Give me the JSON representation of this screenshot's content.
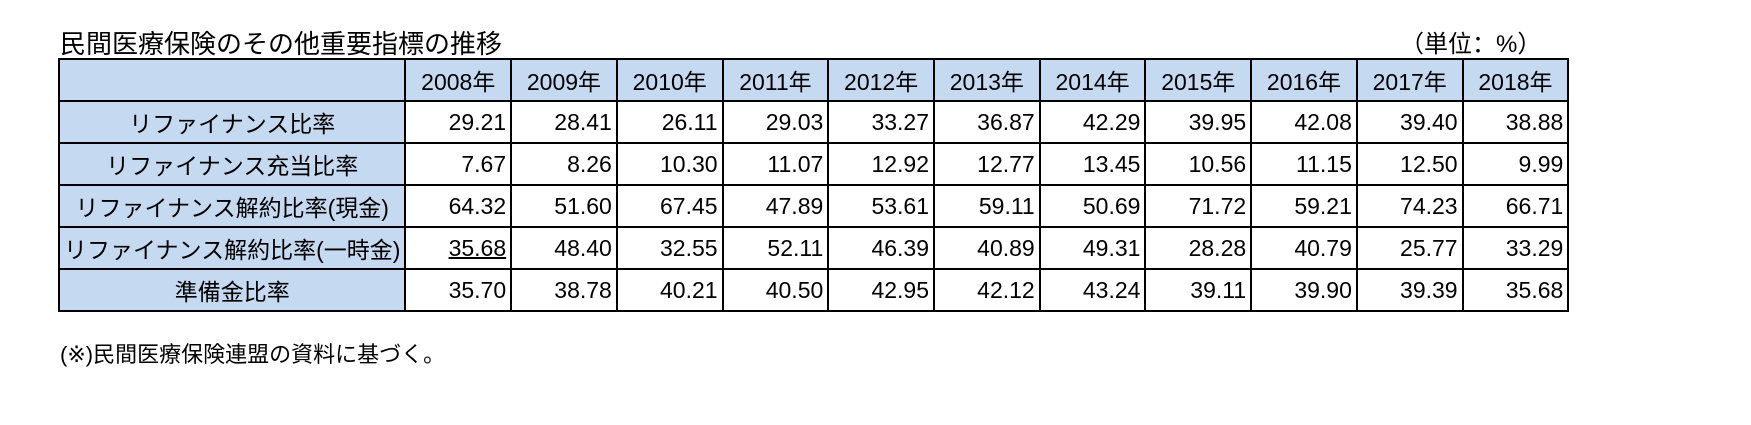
{
  "title": "民間医療保険のその他重要指標の推移",
  "unit": "（単位：%）",
  "table": {
    "columns": [
      "2008年",
      "2009年",
      "2010年",
      "2011年",
      "2012年",
      "2013年",
      "2014年",
      "2015年",
      "2016年",
      "2017年",
      "2018年"
    ],
    "rows": [
      {
        "label": "リファイナンス比率",
        "values": [
          "29.21",
          "28.41",
          "26.11",
          "29.03",
          "33.27",
          "36.87",
          "42.29",
          "39.95",
          "42.08",
          "39.40",
          "38.88"
        ]
      },
      {
        "label": "リファイナンス充当比率",
        "values": [
          "7.67",
          "8.26",
          "10.30",
          "11.07",
          "12.92",
          "12.77",
          "13.45",
          "10.56",
          "11.15",
          "12.50",
          "9.99"
        ]
      },
      {
        "label": "リファイナンス解約比率(現金)",
        "values": [
          "64.32",
          "51.60",
          "67.45",
          "47.89",
          "53.61",
          "59.11",
          "50.69",
          "71.72",
          "59.21",
          "74.23",
          "66.71"
        ]
      },
      {
        "label": "リファイナンス解約比率(一時金)",
        "values": [
          "35.68",
          "48.40",
          "32.55",
          "52.11",
          "46.39",
          "40.89",
          "49.31",
          "28.28",
          "40.79",
          "25.77",
          "33.29"
        ]
      },
      {
        "label": "準備金比率",
        "values": [
          "35.70",
          "38.78",
          "40.21",
          "40.50",
          "42.95",
          "42.12",
          "43.24",
          "39.11",
          "39.90",
          "39.39",
          "35.68"
        ]
      }
    ]
  },
  "footnote": "(※)民間医療保険連盟の資料に基づく。"
}
